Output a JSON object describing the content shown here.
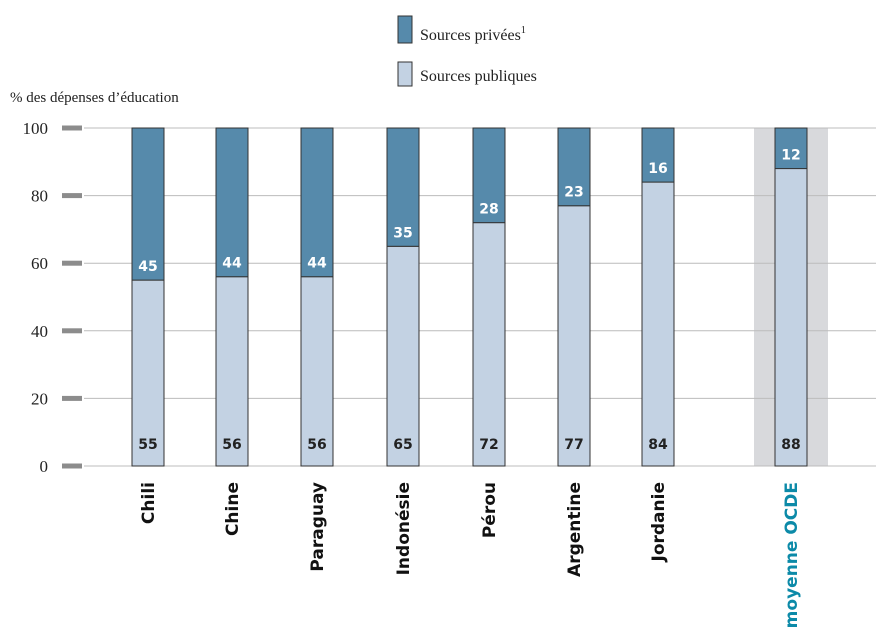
{
  "chart_data": {
    "type": "bar",
    "stacked": true,
    "ylabel": "% des dépenses d’éducation",
    "ylim": [
      0,
      100
    ],
    "yticks": [
      0,
      20,
      40,
      60,
      80,
      100
    ],
    "grid": true,
    "legend_position": "top-center",
    "categories": [
      "Chili",
      "Chine",
      "Paraguay",
      "Indonésie",
      "Pérou",
      "Argentine",
      "Jordanie",
      "moyenne OCDE"
    ],
    "highlighted_category": "moyenne OCDE",
    "series": [
      {
        "name": "Sources publiques",
        "color": "#c3d2e3",
        "values": [
          55,
          56,
          56,
          65,
          72,
          77,
          84,
          88
        ]
      },
      {
        "name": "Sources privées",
        "color": "#568aab",
        "values": [
          45,
          44,
          44,
          35,
          28,
          23,
          16,
          12
        ]
      }
    ],
    "legend": [
      {
        "label": "Sources privées",
        "footnote": "1",
        "color": "#568aab"
      },
      {
        "label": "Sources publiques",
        "color": "#c3d2e3"
      }
    ],
    "colors": {
      "highlight_band": "#d8d9dc",
      "highlight_text": "#0c8aa8",
      "axis_tick": "#8c8c8c",
      "gridline": "#bcbcbc",
      "bar_outline": "#333333"
    }
  }
}
